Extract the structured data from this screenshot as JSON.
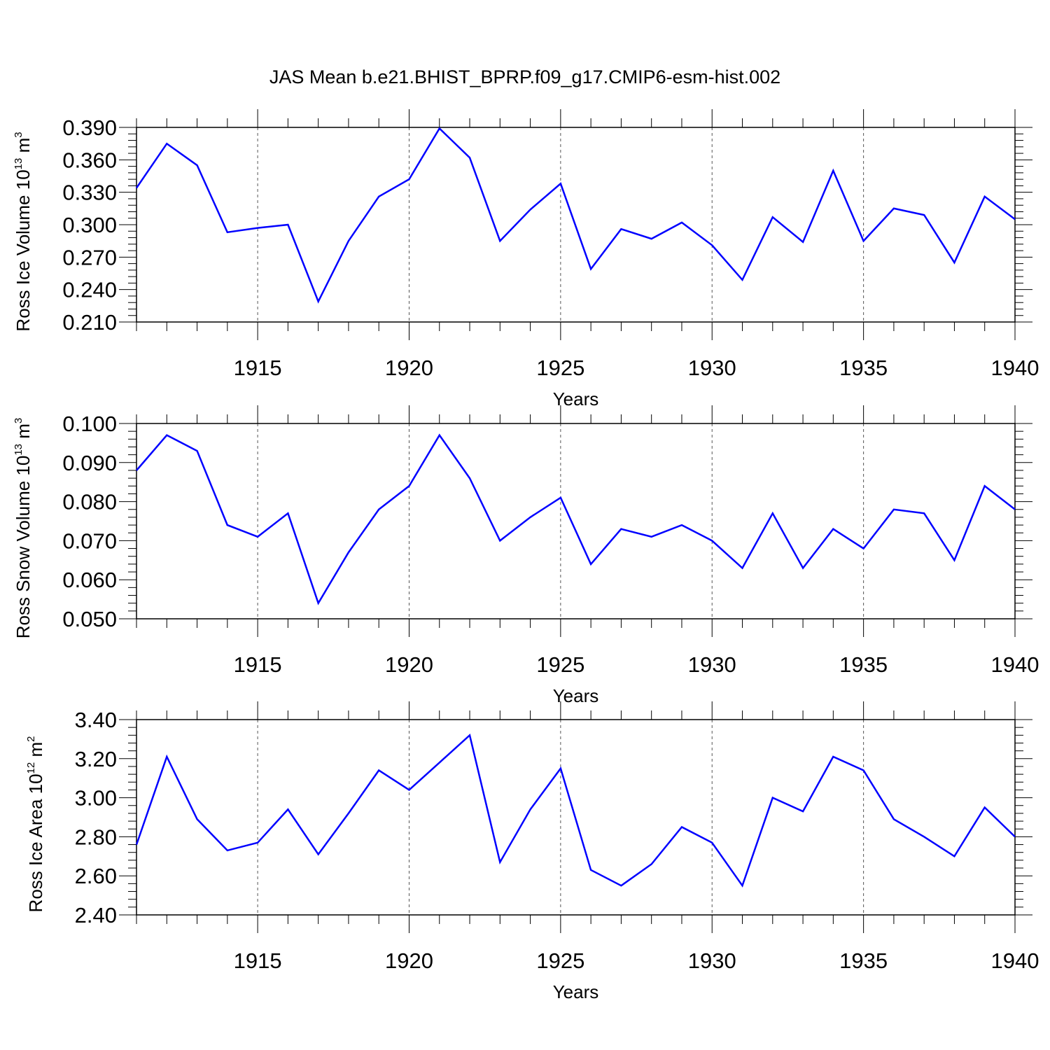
{
  "figure_title": "JAS Mean b.e21.BHIST_BPRP.f09_g17.CMIP6-esm-hist.002",
  "line_color": "#0000ff",
  "chart_data": [
    {
      "type": "line",
      "ylabel": {
        "text": "Ross Ice Volume 10",
        "sup": "13",
        "unit": " m",
        "unit_sup": "3"
      },
      "xlabel": "Years",
      "xlim": [
        1911,
        1940
      ],
      "ylim": [
        0.21,
        0.39
      ],
      "x_ticks": [
        1915,
        1920,
        1925,
        1930,
        1935,
        1940
      ],
      "y_ticks": [
        "0.210",
        "0.240",
        "0.270",
        "0.300",
        "0.330",
        "0.360",
        "0.390"
      ],
      "grid": "vertical dashed at major x ticks",
      "x": [
        1911,
        1912,
        1913,
        1914,
        1915,
        1916,
        1917,
        1918,
        1919,
        1920,
        1921,
        1922,
        1923,
        1924,
        1925,
        1926,
        1927,
        1928,
        1929,
        1930,
        1931,
        1932,
        1933,
        1934,
        1935,
        1936,
        1937,
        1938,
        1939,
        1940
      ],
      "values": [
        0.334,
        0.375,
        0.355,
        0.293,
        0.297,
        0.3,
        0.229,
        0.285,
        0.326,
        0.342,
        0.389,
        0.362,
        0.285,
        0.314,
        0.338,
        0.259,
        0.296,
        0.287,
        0.302,
        0.281,
        0.249,
        0.307,
        0.284,
        0.35,
        0.285,
        0.315,
        0.309,
        0.265,
        0.326,
        0.305
      ]
    },
    {
      "type": "line",
      "ylabel": {
        "text": "Ross Snow Volume 10",
        "sup": "13",
        "unit": " m",
        "unit_sup": "3"
      },
      "xlabel": "Years",
      "xlim": [
        1911,
        1940
      ],
      "ylim": [
        0.05,
        0.1
      ],
      "x_ticks": [
        1915,
        1920,
        1925,
        1930,
        1935,
        1940
      ],
      "y_ticks": [
        "0.050",
        "0.060",
        "0.070",
        "0.080",
        "0.090",
        "0.100"
      ],
      "grid": "vertical dashed at major x ticks",
      "x": [
        1911,
        1912,
        1913,
        1914,
        1915,
        1916,
        1917,
        1918,
        1919,
        1920,
        1921,
        1922,
        1923,
        1924,
        1925,
        1926,
        1927,
        1928,
        1929,
        1930,
        1931,
        1932,
        1933,
        1934,
        1935,
        1936,
        1937,
        1938,
        1939,
        1940
      ],
      "values": [
        0.088,
        0.097,
        0.093,
        0.074,
        0.071,
        0.077,
        0.054,
        0.067,
        0.078,
        0.084,
        0.097,
        0.086,
        0.07,
        0.076,
        0.081,
        0.064,
        0.073,
        0.071,
        0.074,
        0.07,
        0.063,
        0.077,
        0.063,
        0.073,
        0.068,
        0.078,
        0.077,
        0.065,
        0.084,
        0.078
      ]
    },
    {
      "type": "line",
      "ylabel": {
        "text": "Ross Ice Area 10",
        "sup": "12",
        "unit": " m",
        "unit_sup": "2"
      },
      "xlabel": "Years",
      "xlim": [
        1911,
        1940
      ],
      "ylim": [
        2.4,
        3.4
      ],
      "x_ticks": [
        1915,
        1920,
        1925,
        1930,
        1935,
        1940
      ],
      "y_ticks": [
        "2.40",
        "2.60",
        "2.80",
        "3.00",
        "3.20",
        "3.40"
      ],
      "grid": "vertical dashed at major x ticks",
      "x": [
        1911,
        1912,
        1913,
        1914,
        1915,
        1916,
        1917,
        1918,
        1919,
        1920,
        1921,
        1922,
        1923,
        1924,
        1925,
        1926,
        1927,
        1928,
        1929,
        1930,
        1931,
        1932,
        1933,
        1934,
        1935,
        1936,
        1937,
        1938,
        1939,
        1940
      ],
      "values": [
        2.76,
        3.21,
        2.89,
        2.73,
        2.77,
        2.94,
        2.71,
        2.92,
        3.14,
        3.04,
        3.18,
        3.32,
        2.67,
        2.94,
        3.15,
        2.63,
        2.55,
        2.66,
        2.85,
        2.77,
        2.55,
        3.0,
        2.93,
        3.21,
        3.14,
        2.89,
        2.8,
        2.7,
        2.95,
        2.8
      ]
    }
  ]
}
